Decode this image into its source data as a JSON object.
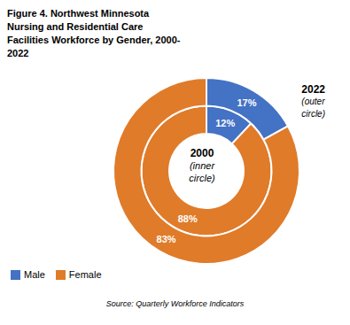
{
  "chart_data": {
    "type": "pie",
    "title": "Figure 4. Northwest Minnesota\nNursing and Residential Care\nFacilities Workforce by Gender, 2000-\n2022",
    "categories": [
      "Male",
      "Female"
    ],
    "colors": [
      "#4472C4",
      "#E07B2A"
    ],
    "series": [
      {
        "name": "2000",
        "values": [
          12,
          88
        ],
        "value_labels": [
          "12%",
          "88%"
        ]
      },
      {
        "name": "2022",
        "values": [
          17,
          83
        ],
        "value_labels": [
          "17%",
          "83%"
        ]
      }
    ],
    "annotations": [
      "(inner\ncircle)",
      "(outer\ncircle)",
      "Source: Quarterly Workforce Indicators"
    ],
    "data_labels": true,
    "legend": "lower left"
  }
}
